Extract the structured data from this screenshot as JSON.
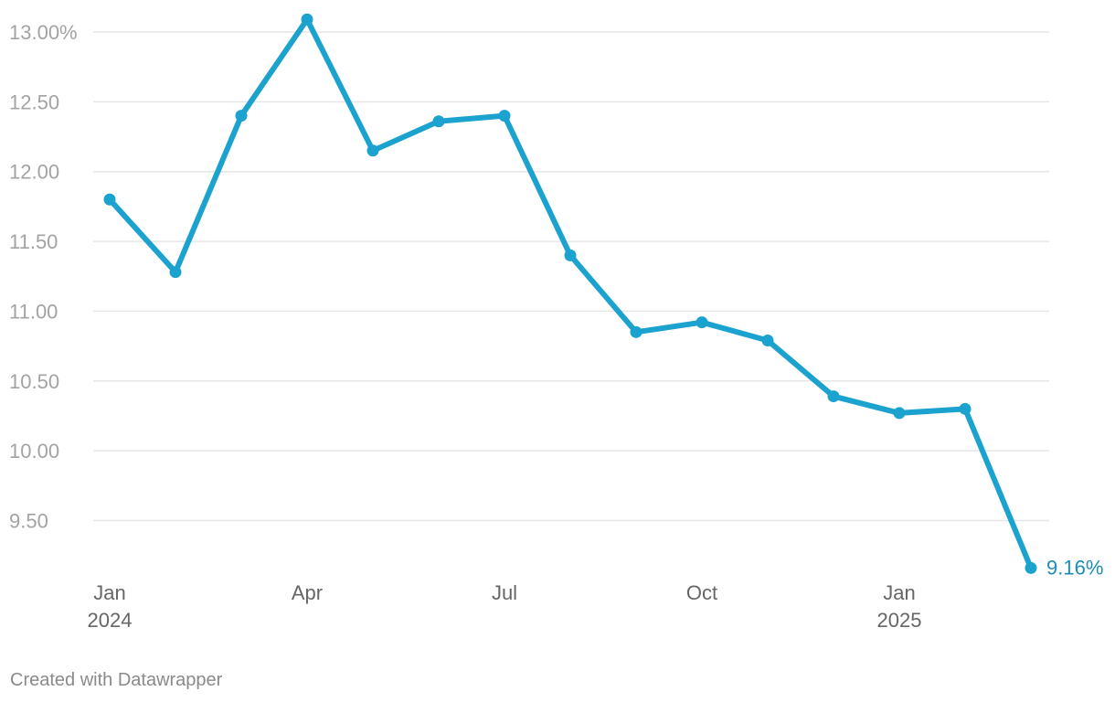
{
  "chart_data": {
    "type": "line",
    "x": [
      "2024-01",
      "2024-02",
      "2024-03",
      "2024-04",
      "2024-05",
      "2024-06",
      "2024-07",
      "2024-08",
      "2024-09",
      "2024-10",
      "2024-11",
      "2024-12",
      "2025-01",
      "2025-02",
      "2025-03"
    ],
    "series": [
      {
        "values": [
          11.8,
          11.28,
          12.4,
          13.09,
          12.15,
          12.36,
          12.4,
          11.4,
          10.85,
          10.92,
          10.79,
          10.39,
          10.27,
          10.3,
          9.16
        ]
      }
    ],
    "y_ticks": [
      {
        "value": 13.0,
        "label": "13.00%"
      },
      {
        "value": 12.5,
        "label": "12.50"
      },
      {
        "value": 12.0,
        "label": "12.00"
      },
      {
        "value": 11.5,
        "label": "11.50"
      },
      {
        "value": 11.0,
        "label": "11.00"
      },
      {
        "value": 10.5,
        "label": "10.50"
      },
      {
        "value": 10.0,
        "label": "10.00"
      },
      {
        "value": 9.5,
        "label": "9.50"
      }
    ],
    "x_ticks": [
      {
        "x": "2024-01",
        "label": "Jan",
        "sublabel": "2024"
      },
      {
        "x": "2024-04",
        "label": "Apr",
        "sublabel": ""
      },
      {
        "x": "2024-07",
        "label": "Jul",
        "sublabel": ""
      },
      {
        "x": "2024-10",
        "label": "Oct",
        "sublabel": ""
      },
      {
        "x": "2025-01",
        "label": "Jan",
        "sublabel": "2025"
      }
    ],
    "end_label": "9.16%",
    "ylim": [
      9.0,
      13.1
    ],
    "grid": "horizontal",
    "color": "#1ba2cf"
  },
  "credit": "Created with Datawrapper"
}
